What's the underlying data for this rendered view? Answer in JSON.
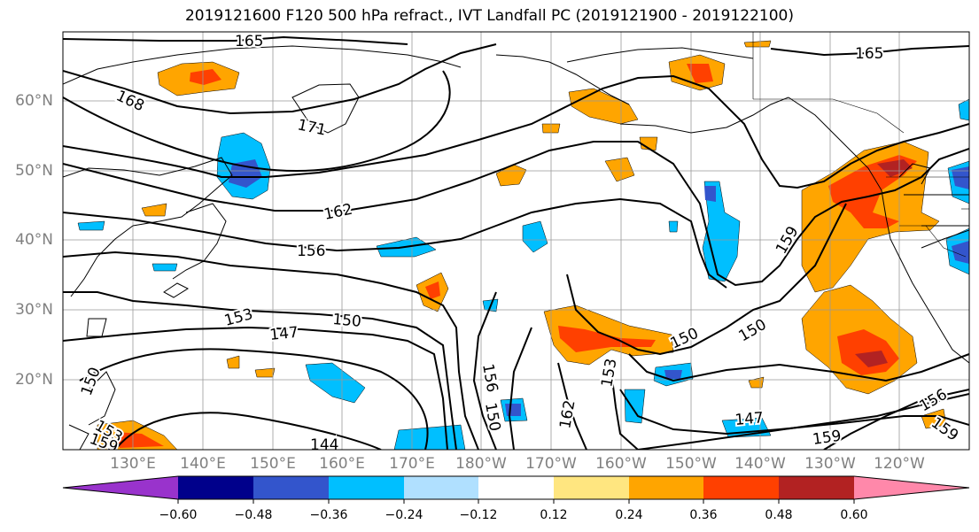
{
  "title": "2019121600 F120 500 hPa refract., IVT Landfall PC (2019121900 - 2019122100)",
  "latitude_labels": [
    "60°N",
    "50°N",
    "40°N",
    "30°N",
    "20°N"
  ],
  "longitude_labels": [
    "130°E",
    "140°E",
    "150°E",
    "160°E",
    "170°E",
    "180°W",
    "170°W",
    "160°W",
    "150°W",
    "140°W",
    "130°W",
    "120°W"
  ],
  "contour_labels": [
    "165",
    "165",
    "168",
    "171",
    "162",
    "156",
    "159",
    "153",
    "150",
    "147",
    "150",
    "150",
    "144",
    "150",
    "153",
    "156",
    "162",
    "147",
    "159",
    "156",
    "159",
    "150",
    "153",
    "159"
  ],
  "colorbar": {
    "tick_labels": [
      "−0.60",
      "−0.48",
      "−0.36",
      "−0.24",
      "−0.12",
      "0.12",
      "0.24",
      "0.36",
      "0.48",
      "0.60"
    ],
    "colors": [
      "#9933cc",
      "#00008b",
      "#3355cc",
      "#00bfff",
      "#b0e0ff",
      "#ffffff",
      "#ffe680",
      "#ffa500",
      "#ff4000",
      "#b22222",
      "#ff88aa"
    ]
  },
  "colors": {
    "coast": "#000000",
    "grid": "#999999",
    "contour": "#000000"
  }
}
